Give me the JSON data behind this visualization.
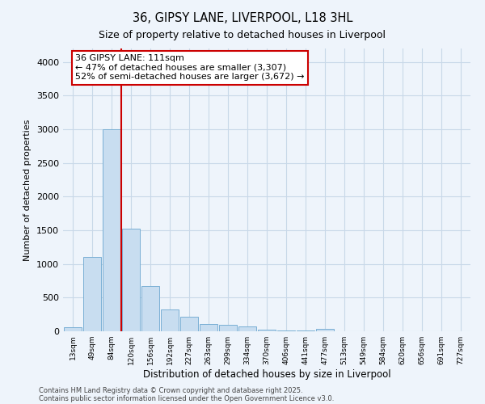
{
  "title1": "36, GIPSY LANE, LIVERPOOL, L18 3HL",
  "title2": "Size of property relative to detached houses in Liverpool",
  "xlabel": "Distribution of detached houses by size in Liverpool",
  "ylabel": "Number of detached properties",
  "categories": [
    "13sqm",
    "49sqm",
    "84sqm",
    "120sqm",
    "156sqm",
    "192sqm",
    "227sqm",
    "263sqm",
    "299sqm",
    "334sqm",
    "370sqm",
    "406sqm",
    "441sqm",
    "477sqm",
    "513sqm",
    "549sqm",
    "584sqm",
    "620sqm",
    "656sqm",
    "691sqm",
    "727sqm"
  ],
  "values": [
    55,
    1100,
    3000,
    1520,
    670,
    330,
    215,
    105,
    95,
    75,
    30,
    15,
    10,
    35,
    5,
    3,
    2,
    2,
    1,
    1,
    0
  ],
  "bar_color": "#c8ddf0",
  "bar_edge_color": "#7aafd4",
  "grid_color": "#c8d8e8",
  "background_color": "#eef4fb",
  "red_line_x": 2.5,
  "annotation_text": "36 GIPSY LANE: 111sqm\n← 47% of detached houses are smaller (3,307)\n52% of semi-detached houses are larger (3,672) →",
  "annotation_box_color": "#ffffff",
  "annotation_border_color": "#cc0000",
  "ylim": [
    0,
    4200
  ],
  "yticks": [
    0,
    500,
    1000,
    1500,
    2000,
    2500,
    3000,
    3500,
    4000
  ],
  "footer1": "Contains HM Land Registry data © Crown copyright and database right 2025.",
  "footer2": "Contains public sector information licensed under the Open Government Licence v3.0."
}
